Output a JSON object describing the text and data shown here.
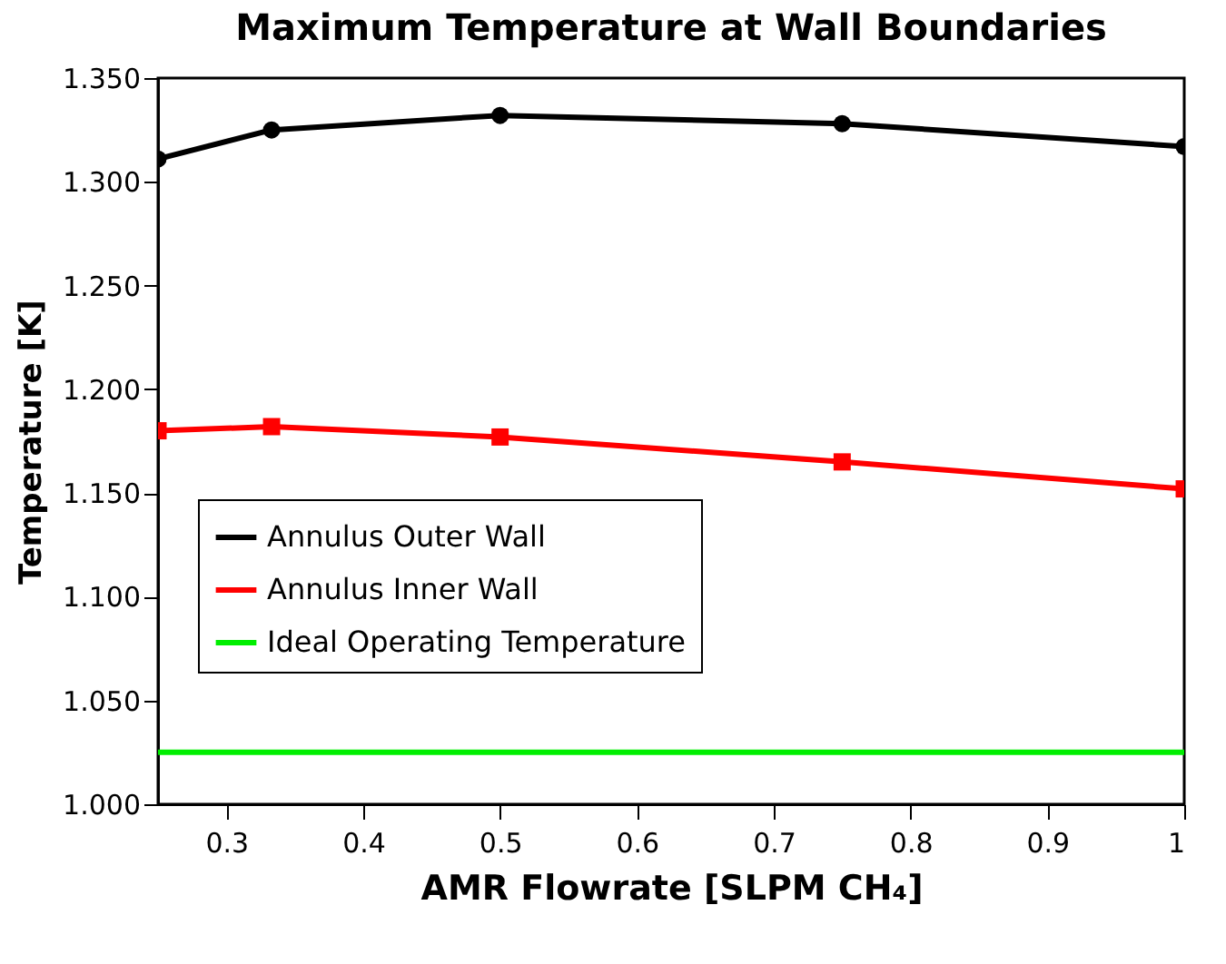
{
  "chart_data": {
    "type": "line",
    "title": "Maximum Temperature at Wall Boundaries",
    "xlabel": "AMR Flowrate [SLPM CH₄]",
    "ylabel": "Temperature [K]",
    "x": [
      0.25,
      0.333,
      0.5,
      0.75,
      1
    ],
    "series": [
      {
        "name": "Annulus Outer Wall",
        "color": "#000000",
        "marker": "circle",
        "values": [
          1.311,
          1.325,
          1.332,
          1.328,
          1.317
        ]
      },
      {
        "name": "Annulus Inner Wall",
        "color": "#ff0000",
        "marker": "square",
        "values": [
          1.18,
          1.182,
          1.177,
          1.165,
          1.152
        ]
      },
      {
        "name": "Ideal Operating Temperature",
        "color": "#00ee00",
        "marker": "none",
        "x": [
          0.25,
          1
        ],
        "values": [
          1.025,
          1.025
        ]
      }
    ],
    "xlim": [
      0.25,
      1
    ],
    "xticks": [
      0.3,
      0.4,
      0.5,
      0.6,
      0.7,
      0.8,
      0.9,
      1
    ],
    "ylim": [
      1,
      1.35
    ],
    "yticks": [
      {
        "value": 1,
        "label": "1.000"
      },
      {
        "value": 1.05,
        "label": "1.050"
      },
      {
        "value": 1.1,
        "label": "1.100"
      },
      {
        "value": 1.15,
        "label": "1.150"
      },
      {
        "value": 1.2,
        "label": "1.200"
      },
      {
        "value": 1.25,
        "label": "1.250"
      },
      {
        "value": 1.3,
        "label": "1.300"
      },
      {
        "value": 1.35,
        "label": "1.350"
      }
    ],
    "grid": false,
    "legend": "bottom left"
  }
}
